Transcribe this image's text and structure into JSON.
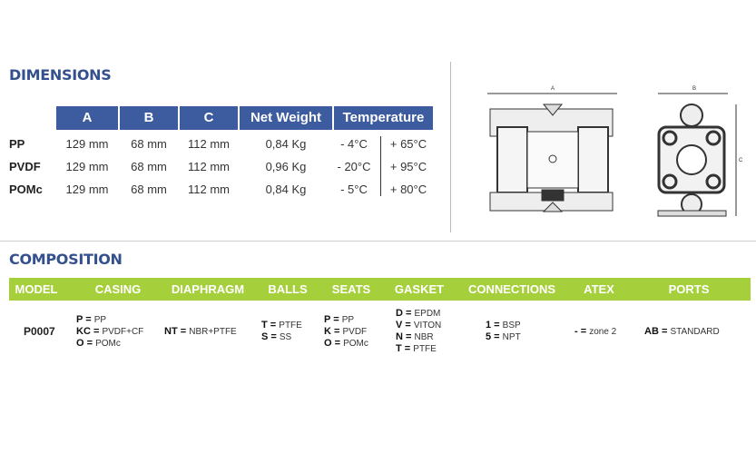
{
  "dimensions": {
    "title": "DIMENSIONS",
    "headers": [
      "A",
      "B",
      "C",
      "Net Weight",
      "Temperature"
    ],
    "rows": [
      {
        "material": "PP",
        "a": "129 mm",
        "b": "68 mm",
        "c": "112 mm",
        "weight": "0,84 Kg",
        "tmin": "- 4°C",
        "tmax": "+ 65°C"
      },
      {
        "material": "PVDF",
        "a": "129 mm",
        "b": "68 mm",
        "c": "112 mm",
        "weight": "0,96 Kg",
        "tmin": "- 20°C",
        "tmax": "+ 95°C"
      },
      {
        "material": "POMc",
        "a": "129 mm",
        "b": "68 mm",
        "c": "112 mm",
        "weight": "0,84 Kg",
        "tmin": "- 5°C",
        "tmax": "+ 80°C"
      }
    ]
  },
  "drawing": {
    "label_a": "A",
    "label_b": "B",
    "label_c": "C"
  },
  "composition": {
    "title": "COMPOSITION",
    "headers": [
      "MODEL",
      "CASING",
      "DIAPHRAGM",
      "BALLS",
      "SEATS",
      "GASKET",
      "CONNECTIONS",
      "ATEX",
      "PORTS"
    ],
    "model": "P0007",
    "casing": [
      {
        "code": "P",
        "value": "PP"
      },
      {
        "code": "KC",
        "value": "PVDF+CF"
      },
      {
        "code": "O",
        "value": "POMc"
      }
    ],
    "diaphragm": [
      {
        "code": "NT",
        "value": "NBR+PTFE"
      }
    ],
    "balls": [
      {
        "code": "T",
        "value": "PTFE"
      },
      {
        "code": "S",
        "value": "SS"
      }
    ],
    "seats": [
      {
        "code": "P",
        "value": "PP"
      },
      {
        "code": "K",
        "value": "PVDF"
      },
      {
        "code": "O",
        "value": "POMc"
      }
    ],
    "gasket": [
      {
        "code": "D",
        "value": "EPDM"
      },
      {
        "code": "V",
        "value": "VITON"
      },
      {
        "code": "N",
        "value": "NBR"
      },
      {
        "code": "T",
        "value": "PTFE"
      }
    ],
    "connections": [
      {
        "code": "1",
        "value": "BSP"
      },
      {
        "code": "5",
        "value": "NPT"
      }
    ],
    "atex": [
      {
        "code": "-",
        "value": "zone 2"
      }
    ],
    "ports": [
      {
        "code": "AB",
        "value": "STANDARD"
      }
    ]
  },
  "colors": {
    "dimensions_header": "#3d5b9f",
    "composition_header": "#a6cf3c",
    "title": "#34508e"
  }
}
